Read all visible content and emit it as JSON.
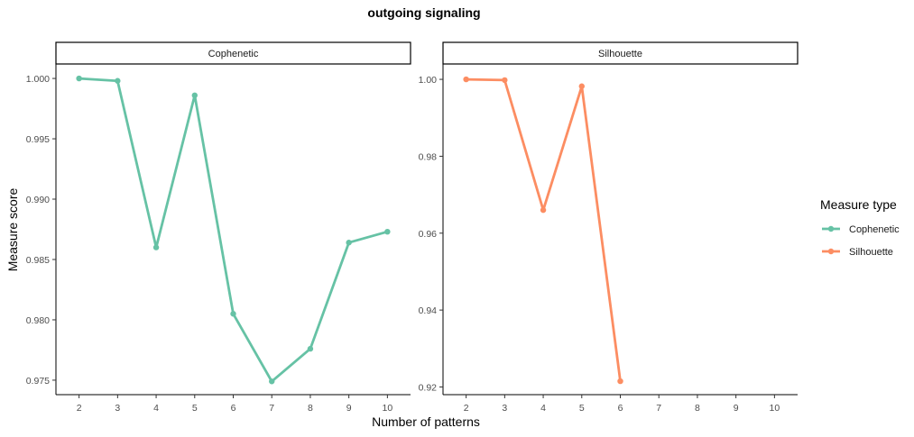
{
  "chart_data": {
    "type": "line",
    "title": "outgoing signaling",
    "xlabel": "Number of patterns",
    "ylabel": "Measure score",
    "x": [
      2,
      3,
      4,
      5,
      6,
      7,
      8,
      9,
      10
    ],
    "legend": {
      "title": "Measure type",
      "placement": "right",
      "entries": [
        "Cophenetic",
        "Silhouette"
      ]
    },
    "grid": false,
    "panels": [
      {
        "strip": "Cophenetic",
        "color": "#66c2a5",
        "series": [
          {
            "name": "Cophenetic",
            "x": [
              2,
              3,
              4,
              5,
              6,
              7,
              8,
              9,
              10
            ],
            "y": [
              1.0,
              0.9998,
              0.986,
              0.9986,
              0.9805,
              0.9749,
              0.9776,
              0.9864,
              0.9873
            ]
          }
        ],
        "ylim": [
          0.9738,
          1.0012
        ],
        "yticks": [
          0.975,
          0.98,
          0.985,
          0.99,
          0.995,
          1.0
        ],
        "ytick_labels": [
          "0.975",
          "0.980",
          "0.985",
          "0.990",
          "0.995",
          "1.000"
        ]
      },
      {
        "strip": "Silhouette",
        "color": "#fc8d62",
        "series": [
          {
            "name": "Silhouette",
            "x": [
              2,
              3,
              4,
              5,
              6
            ],
            "y": [
              1.0,
              0.9998,
              0.966,
              0.9982,
              0.9215
            ]
          }
        ],
        "ylim": [
          0.918,
          1.004
        ],
        "yticks": [
          0.92,
          0.94,
          0.96,
          0.98,
          1.0
        ],
        "ytick_labels": [
          "0.92",
          "0.94",
          "0.96",
          "0.98",
          "1.00"
        ]
      }
    ]
  }
}
